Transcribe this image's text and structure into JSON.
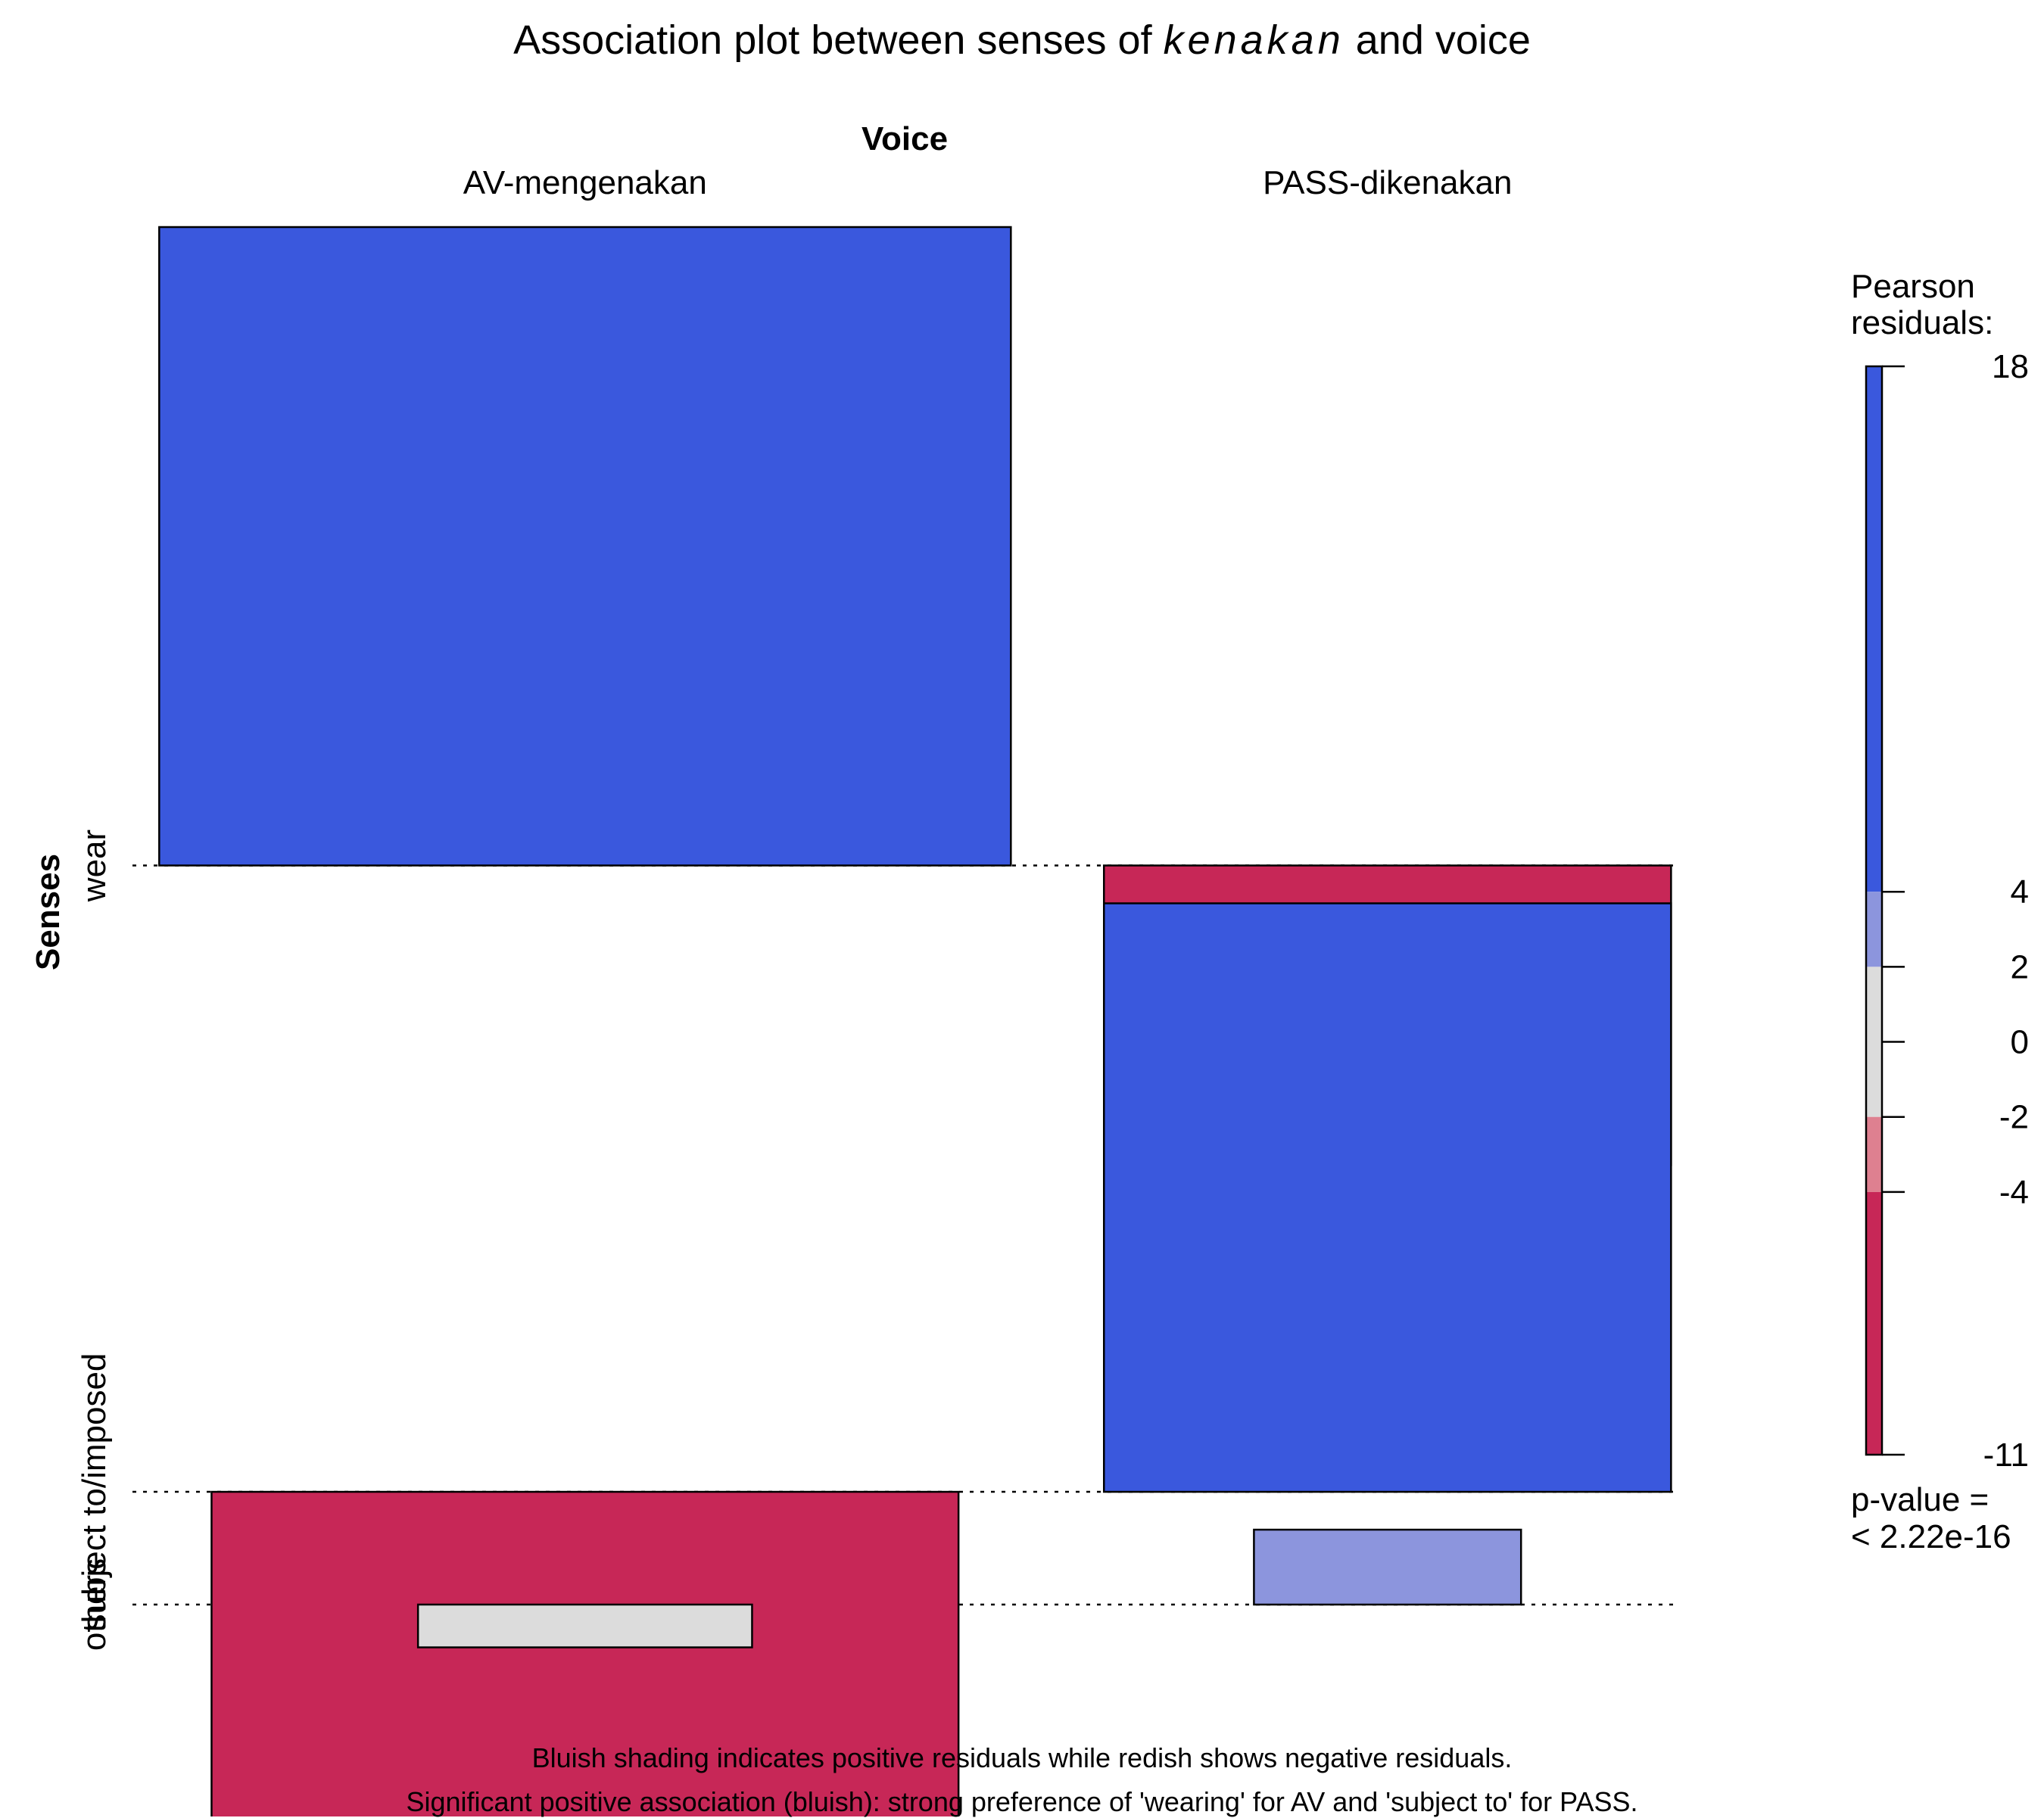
{
  "chart_data": {
    "type": "association-plot",
    "title": {
      "prefix": "Association plot between senses of ",
      "emphasis": "kenakan",
      "suffix": " and voice"
    },
    "column_variable": "Voice",
    "row_variable": "Senses",
    "columns": [
      "AV-mengenakan",
      "PASS-dikenakan"
    ],
    "rows": [
      "wear",
      "subject to/imposed",
      "others"
    ],
    "residuals": [
      [
        17.9,
        -8.4
      ],
      [
        -10.8,
        16.5
      ],
      [
        -1.2,
        2.1
      ]
    ],
    "expected_share": {
      "columns": [
        0.61,
        0.39
      ],
      "rows": [
        0.52,
        0.4,
        0.08
      ]
    },
    "legend": {
      "title_line1": "Pearson",
      "title_line2": "residuals:",
      "ticks": [
        "18",
        "4",
        "2",
        "0",
        "-2",
        "-4",
        "-11"
      ],
      "tick_values": [
        18,
        4,
        2,
        0,
        -2,
        -4,
        -11
      ],
      "range": [
        -11,
        18
      ],
      "pvalue_line1": "p-value =",
      "pvalue_line2": "< 2.22e-16",
      "placement": "right"
    },
    "colors": {
      "strong_positive": "#3a58dd",
      "weak_positive": "#8c95dd",
      "neutral": "#dcdcdc",
      "weak_negative": "#de8090",
      "strong_negative": "#c72757"
    }
  },
  "footer": {
    "line1": "Bluish shading indicates positive residuals while redish shows negative residuals.",
    "line2": "Significant positive association (bluish): strong preference of 'wearing' for AV and 'subject to' for PASS."
  }
}
